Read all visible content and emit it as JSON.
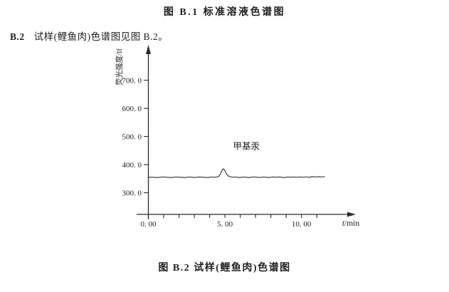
{
  "page": {
    "background": "#ffffff",
    "text_color": "#1f1f1f",
    "line_color": "#2b2b2b"
  },
  "captions": {
    "figure_b1": "图 B.1  标准溶液色谱图",
    "figure_b2": "图 B.2  试样(鲤鱼肉)色谱图"
  },
  "paragraph": {
    "number": "B.2",
    "text": "试样(鲤鱼肉)色谱图见图 B.2。"
  },
  "chart_data": {
    "type": "line",
    "title": "试样(鲤鱼肉)色谱图",
    "xlabel": "t/min",
    "ylabel": "荧光强度/If",
    "xlim": [
      0,
      13.5
    ],
    "ylim": [
      223,
      798
    ],
    "grid": false,
    "legend": "none",
    "xticks": {
      "major": [
        {
          "value": 0,
          "label": "0. 00"
        },
        {
          "value": 5,
          "label": "5. 00"
        },
        {
          "value": 10,
          "label": "10. 00"
        }
      ],
      "minor_step": 1,
      "minor_range": [
        0,
        11
      ]
    },
    "yticks": [
      {
        "value": 300,
        "label": "300. 0"
      },
      {
        "value": 400,
        "label": "400. 0"
      },
      {
        "value": 500,
        "label": "500. 0"
      },
      {
        "value": 600,
        "label": "600. 0"
      },
      {
        "value": 700,
        "label": "700. 0"
      }
    ],
    "annotations": [
      {
        "label": "甲基汞",
        "x": 6.4,
        "y": 465
      }
    ],
    "series": [
      {
        "name": "试样(鲤鱼肉)",
        "baseline_intensity": 355,
        "peak": {
          "analyte": "甲基汞",
          "retention_time_min": 4.9,
          "apex_intensity": 385
        },
        "points": [
          [
            0.0,
            355
          ],
          [
            0.3,
            355
          ],
          [
            0.6,
            354
          ],
          [
            0.9,
            356
          ],
          [
            1.2,
            355
          ],
          [
            1.5,
            354
          ],
          [
            1.8,
            356
          ],
          [
            2.1,
            355
          ],
          [
            2.4,
            354
          ],
          [
            2.7,
            356
          ],
          [
            3.0,
            354
          ],
          [
            3.3,
            356
          ],
          [
            3.6,
            355
          ],
          [
            3.9,
            354
          ],
          [
            4.1,
            356
          ],
          [
            4.3,
            355
          ],
          [
            4.5,
            356
          ],
          [
            4.6,
            358
          ],
          [
            4.7,
            366
          ],
          [
            4.8,
            379
          ],
          [
            4.9,
            385
          ],
          [
            5.0,
            379
          ],
          [
            5.1,
            367
          ],
          [
            5.2,
            360
          ],
          [
            5.35,
            357
          ],
          [
            5.5,
            355
          ],
          [
            5.7,
            356
          ],
          [
            5.9,
            354
          ],
          [
            6.1,
            355
          ],
          [
            6.3,
            356
          ],
          [
            6.5,
            354
          ],
          [
            6.7,
            355
          ],
          [
            6.9,
            356
          ],
          [
            7.1,
            355
          ],
          [
            7.3,
            354
          ],
          [
            7.5,
            356
          ],
          [
            7.7,
            355
          ],
          [
            7.9,
            354
          ],
          [
            8.1,
            356
          ],
          [
            8.3,
            355
          ],
          [
            8.5,
            356
          ],
          [
            8.7,
            355
          ],
          [
            8.9,
            354
          ],
          [
            9.1,
            356
          ],
          [
            9.3,
            355
          ],
          [
            9.5,
            356
          ],
          [
            9.7,
            355
          ],
          [
            9.9,
            356
          ],
          [
            10.1,
            355
          ],
          [
            10.3,
            356
          ],
          [
            10.5,
            355
          ],
          [
            10.7,
            357
          ],
          [
            10.9,
            356
          ],
          [
            11.1,
            357
          ],
          [
            11.3,
            356
          ],
          [
            11.5,
            357
          ]
        ]
      }
    ]
  }
}
